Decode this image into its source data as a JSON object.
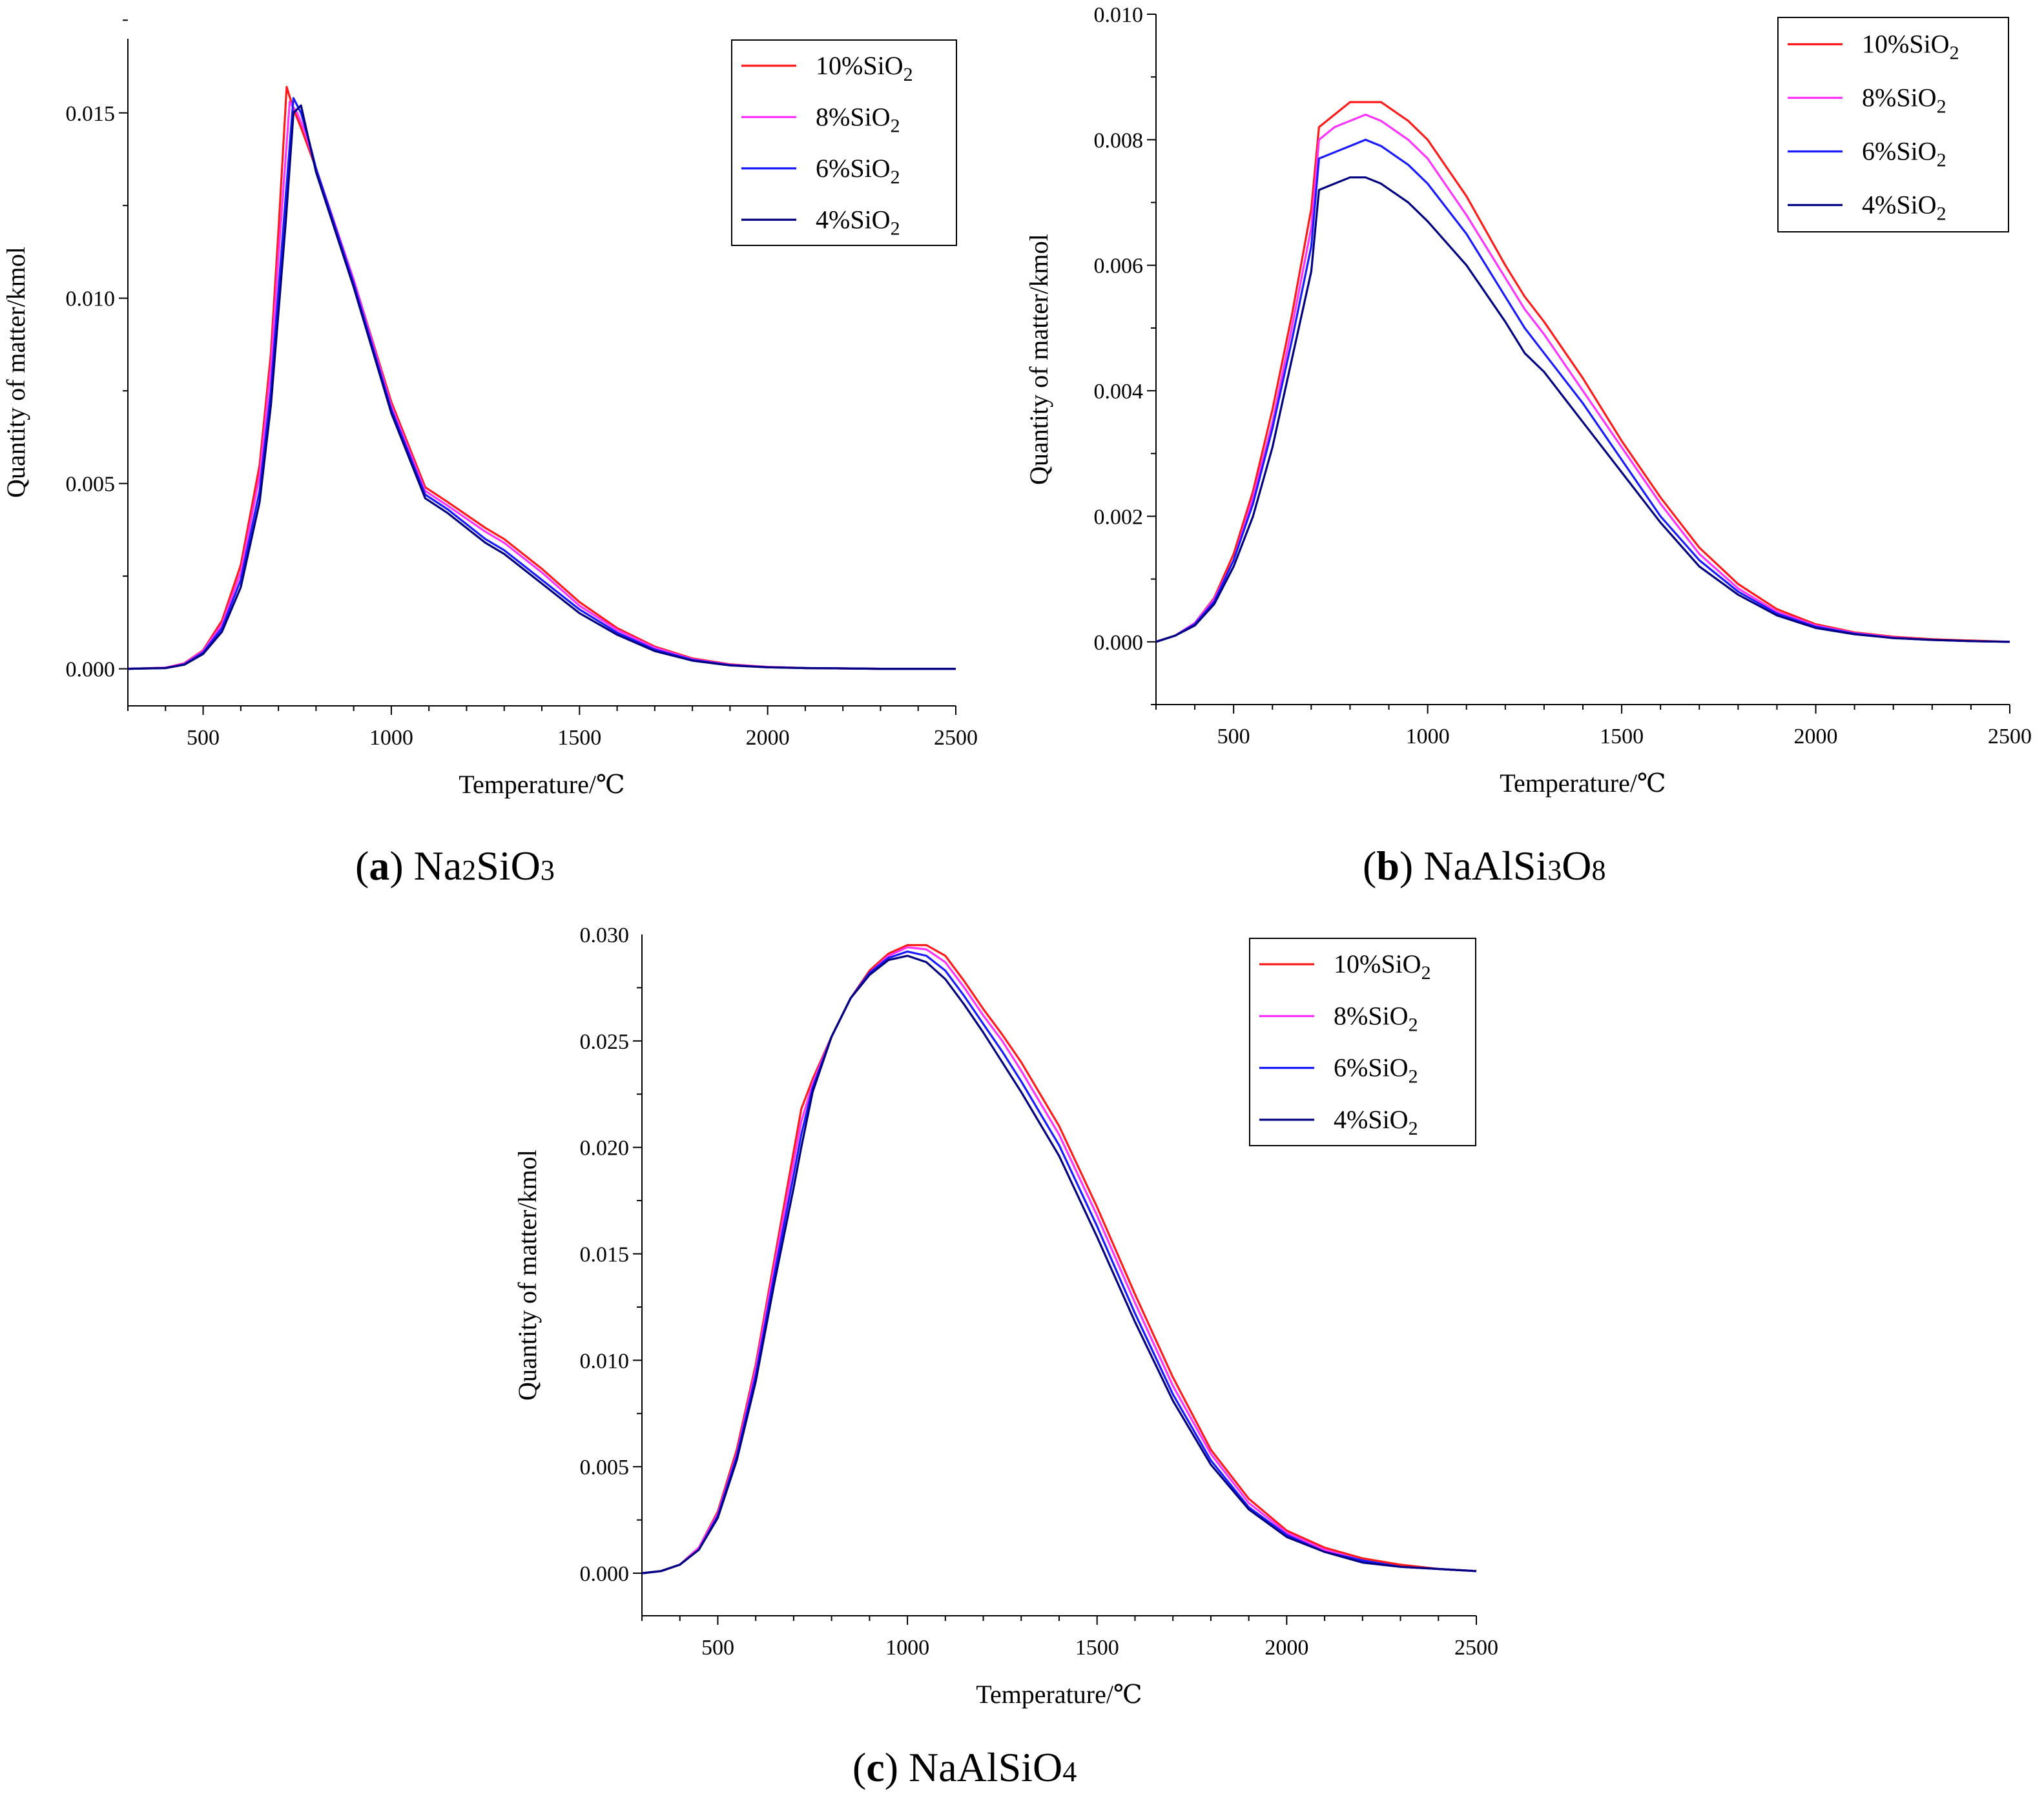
{
  "figure": {
    "panels_note": "Three panels: Na2SiO3, NaAlSi3O8, NaAlSiO4"
  },
  "colors": {
    "s10": "#ff1a1a",
    "s8": "#ff33ff",
    "s6": "#1a1aff",
    "s4": "#000080"
  },
  "chart_data": [
    {
      "id": "a",
      "type": "line",
      "caption_letter": "a",
      "caption_compound": "Na",
      "caption_sub1": "2",
      "caption_mid": "SiO",
      "caption_sub2": "3",
      "caption_tail": "",
      "xlabel": "Temperature/℃",
      "ylabel": "Quantity of matter/kmol",
      "xlim": [
        300,
        2500
      ],
      "ylim": [
        -0.001,
        0.017
      ],
      "xticks": [
        500,
        1000,
        1500,
        2000,
        2500
      ],
      "yticks": [
        0.0,
        0.005,
        0.01,
        0.015
      ],
      "ytick_labels": [
        "0.000",
        "0.005",
        "0.010",
        "0.015"
      ],
      "legend": [
        "10%SiO2",
        "8%SiO2",
        "6%SiO2",
        "4%SiO2"
      ],
      "series": [
        {
          "name": "10%SiO2",
          "color_key": "s10",
          "x": [
            300,
            400,
            450,
            500,
            550,
            600,
            650,
            680,
            700,
            722,
            740,
            760,
            800,
            900,
            1000,
            1090,
            1150,
            1250,
            1300,
            1400,
            1500,
            1600,
            1700,
            1800,
            1900,
            2000,
            2100,
            2200,
            2300,
            2400,
            2500
          ],
          "y": [
            0,
            3e-05,
            0.00015,
            0.0005,
            0.0013,
            0.0028,
            0.0055,
            0.0085,
            0.0118,
            0.0157,
            0.0151,
            0.0146,
            0.0135,
            0.0105,
            0.0072,
            0.0049,
            0.0045,
            0.0038,
            0.0035,
            0.0027,
            0.0018,
            0.0011,
            0.0006,
            0.00028,
            0.00012,
            5e-05,
            2e-05,
            1e-05,
            0,
            0,
            0
          ]
        },
        {
          "name": "8%SiO2",
          "color_key": "s8",
          "x": [
            300,
            400,
            450,
            500,
            550,
            600,
            650,
            680,
            700,
            730,
            750,
            770,
            800,
            900,
            1000,
            1090,
            1150,
            1250,
            1300,
            1400,
            1500,
            1600,
            1700,
            1800,
            1900,
            2000,
            2100,
            2200,
            2300,
            2400,
            2500
          ],
          "y": [
            0,
            3e-05,
            0.00014,
            0.00048,
            0.0012,
            0.0026,
            0.0052,
            0.0081,
            0.0111,
            0.0153,
            0.015,
            0.0145,
            0.0135,
            0.0105,
            0.0071,
            0.0048,
            0.0044,
            0.0037,
            0.0034,
            0.0026,
            0.0017,
            0.00105,
            0.00057,
            0.00026,
            0.00011,
            5e-05,
            2e-05,
            1e-05,
            0,
            0,
            0
          ]
        },
        {
          "name": "6%SiO2",
          "color_key": "s6",
          "x": [
            300,
            400,
            450,
            500,
            550,
            600,
            650,
            680,
            700,
            720,
            740,
            760,
            780,
            800,
            900,
            1000,
            1090,
            1150,
            1250,
            1300,
            1400,
            1500,
            1600,
            1700,
            1800,
            1900,
            2000,
            2100,
            2200,
            2300,
            2400,
            2500
          ],
          "y": [
            0,
            2e-05,
            0.00012,
            0.00044,
            0.0011,
            0.0024,
            0.0048,
            0.0075,
            0.0102,
            0.0128,
            0.0154,
            0.015,
            0.0143,
            0.0135,
            0.0104,
            0.007,
            0.0047,
            0.0043,
            0.0035,
            0.0032,
            0.0024,
            0.0016,
            0.00098,
            0.00052,
            0.00024,
            0.0001,
            4e-05,
            2e-05,
            1e-05,
            0,
            0,
            0
          ]
        },
        {
          "name": "4%SiO2",
          "color_key": "s4",
          "x": [
            300,
            400,
            450,
            500,
            550,
            600,
            650,
            680,
            700,
            720,
            740,
            760,
            780,
            800,
            900,
            1000,
            1090,
            1150,
            1250,
            1300,
            1400,
            1500,
            1600,
            1700,
            1800,
            1900,
            2000,
            2100,
            2200,
            2300,
            2400,
            2500
          ],
          "y": [
            0,
            2e-05,
            0.00011,
            0.0004,
            0.001,
            0.0022,
            0.0045,
            0.0071,
            0.0096,
            0.0121,
            0.015,
            0.0152,
            0.0143,
            0.0134,
            0.0103,
            0.0069,
            0.0046,
            0.0042,
            0.0034,
            0.0031,
            0.0023,
            0.0015,
            0.00092,
            0.00048,
            0.00022,
            9e-05,
            4e-05,
            2e-05,
            1e-05,
            0,
            0,
            0
          ]
        }
      ]
    },
    {
      "id": "b",
      "type": "line",
      "caption_letter": "b",
      "caption_compound": "NaAlSi",
      "caption_sub1": "3",
      "caption_mid": "O",
      "caption_sub2": "8",
      "caption_tail": "",
      "xlabel": "Temperature/℃",
      "ylabel": "Quantity of matter/kmol",
      "xlim": [
        300,
        2500
      ],
      "ylim": [
        -0.001,
        0.01
      ],
      "xticks": [
        500,
        1000,
        1500,
        2000,
        2500
      ],
      "yticks": [
        0.0,
        0.002,
        0.004,
        0.006,
        0.008,
        0.01
      ],
      "ytick_labels": [
        "0.000",
        "0.002",
        "0.004",
        "0.006",
        "0.008",
        "0.010"
      ],
      "legend": [
        "10%SiO2",
        "8%SiO2",
        "6%SiO2",
        "4%SiO2"
      ],
      "series": [
        {
          "name": "10%SiO2",
          "color_key": "s10",
          "x": [
            300,
            350,
            400,
            450,
            500,
            550,
            600,
            650,
            700,
            720,
            760,
            800,
            840,
            880,
            950,
            1000,
            1100,
            1200,
            1250,
            1300,
            1400,
            1500,
            1600,
            1700,
            1800,
            1900,
            2000,
            2100,
            2200,
            2300,
            2400,
            2500
          ],
          "y": [
            0,
            0.0001,
            0.0003,
            0.0007,
            0.0014,
            0.0024,
            0.0037,
            0.0052,
            0.0069,
            0.0082,
            0.0084,
            0.0086,
            0.0086,
            0.0086,
            0.0083,
            0.008,
            0.0071,
            0.006,
            0.0055,
            0.0051,
            0.0042,
            0.0032,
            0.0023,
            0.0015,
            0.00092,
            0.00052,
            0.00028,
            0.00015,
            8e-05,
            4e-05,
            2e-05,
            0
          ]
        },
        {
          "name": "8%SiO2",
          "color_key": "s8",
          "x": [
            300,
            350,
            400,
            450,
            500,
            550,
            600,
            650,
            700,
            720,
            760,
            800,
            840,
            880,
            950,
            1000,
            1100,
            1200,
            1250,
            1300,
            1400,
            1500,
            1600,
            1700,
            1800,
            1900,
            2000,
            2100,
            2200,
            2300,
            2400,
            2500
          ],
          "y": [
            0,
            0.0001,
            0.0003,
            0.00068,
            0.0013,
            0.0023,
            0.0035,
            0.005,
            0.0066,
            0.008,
            0.0082,
            0.0083,
            0.0084,
            0.0083,
            0.008,
            0.0077,
            0.0068,
            0.0058,
            0.0053,
            0.0049,
            0.004,
            0.0031,
            0.0022,
            0.0014,
            0.00085,
            0.00048,
            0.00026,
            0.00014,
            7e-05,
            3e-05,
            1e-05,
            0
          ]
        },
        {
          "name": "6%SiO2",
          "color_key": "s6",
          "x": [
            300,
            350,
            400,
            450,
            500,
            550,
            600,
            650,
            700,
            720,
            760,
            800,
            840,
            880,
            950,
            1000,
            1100,
            1200,
            1250,
            1300,
            1400,
            1500,
            1600,
            1700,
            1800,
            1900,
            2000,
            2100,
            2200,
            2300,
            2400,
            2500
          ],
          "y": [
            0,
            0.0001,
            0.00028,
            0.00064,
            0.0013,
            0.0022,
            0.0034,
            0.0048,
            0.0063,
            0.0077,
            0.0078,
            0.0079,
            0.008,
            0.0079,
            0.0076,
            0.0073,
            0.0065,
            0.0055,
            0.005,
            0.0046,
            0.0038,
            0.0029,
            0.002,
            0.0013,
            0.0008,
            0.00045,
            0.00024,
            0.00013,
            6e-05,
            3e-05,
            1e-05,
            0
          ]
        },
        {
          "name": "4%SiO2",
          "color_key": "s4",
          "x": [
            300,
            350,
            400,
            450,
            500,
            550,
            600,
            650,
            700,
            720,
            760,
            800,
            840,
            880,
            950,
            1000,
            1100,
            1200,
            1250,
            1300,
            1400,
            1500,
            1600,
            1700,
            1800,
            1900,
            2000,
            2100,
            2200,
            2300,
            2400,
            2500
          ],
          "y": [
            0,
            0.0001,
            0.00026,
            0.0006,
            0.0012,
            0.002,
            0.0031,
            0.0045,
            0.0059,
            0.0072,
            0.0073,
            0.0074,
            0.0074,
            0.0073,
            0.007,
            0.0067,
            0.006,
            0.0051,
            0.0046,
            0.0043,
            0.0035,
            0.0027,
            0.0019,
            0.0012,
            0.00075,
            0.00042,
            0.00022,
            0.00012,
            6e-05,
            3e-05,
            1e-05,
            0
          ]
        }
      ]
    },
    {
      "id": "c",
      "type": "line",
      "caption_letter": "c",
      "caption_compound": "NaAlSiO",
      "caption_sub1": "4",
      "caption_mid": "",
      "caption_sub2": "",
      "caption_tail": "",
      "xlabel": "Temperature/℃",
      "ylabel": "Quantity of matter/kmol",
      "xlim": [
        300,
        2500
      ],
      "ylim": [
        -0.002,
        0.03
      ],
      "xticks": [
        500,
        1000,
        1500,
        2000,
        2500
      ],
      "yticks": [
        0.0,
        0.005,
        0.01,
        0.015,
        0.02,
        0.025,
        0.03
      ],
      "ytick_labels": [
        "0.000",
        "0.005",
        "0.010",
        "0.015",
        "0.020",
        "0.025",
        "0.030"
      ],
      "legend": [
        "10%SiO2",
        "8%SiO2",
        "6%SiO2",
        "4%SiO2"
      ],
      "series": [
        {
          "name": "10%SiO2",
          "color_key": "s10",
          "x": [
            300,
            350,
            400,
            450,
            500,
            550,
            600,
            650,
            700,
            720,
            750,
            800,
            850,
            900,
            950,
            1000,
            1050,
            1100,
            1150,
            1200,
            1250,
            1300,
            1400,
            1500,
            1600,
            1700,
            1800,
            1900,
            2000,
            2100,
            2200,
            2300,
            2400,
            2500
          ],
          "y": [
            0,
            0.0001,
            0.0004,
            0.0012,
            0.0029,
            0.0058,
            0.0098,
            0.0148,
            0.0198,
            0.0218,
            0.0232,
            0.0252,
            0.027,
            0.0283,
            0.0291,
            0.0295,
            0.0295,
            0.029,
            0.0278,
            0.0265,
            0.0253,
            0.024,
            0.021,
            0.0172,
            0.0131,
            0.0092,
            0.0058,
            0.0035,
            0.002,
            0.0012,
            0.0007,
            0.0004,
            0.0002,
            0.0001
          ]
        },
        {
          "name": "8%SiO2",
          "color_key": "s8",
          "x": [
            300,
            350,
            400,
            450,
            500,
            550,
            600,
            650,
            700,
            720,
            750,
            800,
            850,
            900,
            950,
            1000,
            1050,
            1100,
            1150,
            1200,
            1250,
            1300,
            1400,
            1500,
            1600,
            1700,
            1800,
            1900,
            2000,
            2100,
            2200,
            2300,
            2400,
            2500
          ],
          "y": [
            0,
            0.0001,
            0.0004,
            0.0012,
            0.0028,
            0.0056,
            0.0096,
            0.0145,
            0.0193,
            0.0212,
            0.023,
            0.0252,
            0.027,
            0.0282,
            0.029,
            0.0294,
            0.0293,
            0.0287,
            0.0275,
            0.0262,
            0.025,
            0.0236,
            0.0206,
            0.0168,
            0.0127,
            0.0088,
            0.0056,
            0.0033,
            0.0019,
            0.0011,
            0.0006,
            0.0003,
            0.0002,
            0.0001
          ]
        },
        {
          "name": "6%SiO2",
          "color_key": "s6",
          "x": [
            300,
            350,
            400,
            450,
            500,
            550,
            600,
            650,
            700,
            720,
            750,
            800,
            850,
            900,
            950,
            1000,
            1050,
            1100,
            1150,
            1200,
            1250,
            1300,
            1400,
            1500,
            1600,
            1700,
            1800,
            1900,
            2000,
            2100,
            2200,
            2300,
            2400,
            2500
          ],
          "y": [
            0,
            0.0001,
            0.0004,
            0.0011,
            0.0027,
            0.0055,
            0.0093,
            0.0141,
            0.0187,
            0.0206,
            0.0228,
            0.0252,
            0.027,
            0.0282,
            0.0289,
            0.0292,
            0.029,
            0.0283,
            0.0271,
            0.0258,
            0.0245,
            0.0231,
            0.0201,
            0.0163,
            0.0122,
            0.0084,
            0.0053,
            0.0031,
            0.0018,
            0.001,
            0.0006,
            0.0003,
            0.0002,
            0.0001
          ]
        },
        {
          "name": "4%SiO2",
          "color_key": "s4",
          "x": [
            300,
            350,
            400,
            450,
            500,
            550,
            600,
            650,
            700,
            720,
            750,
            800,
            850,
            900,
            950,
            1000,
            1050,
            1100,
            1150,
            1200,
            1250,
            1300,
            1400,
            1500,
            1600,
            1700,
            1800,
            1900,
            2000,
            2100,
            2200,
            2300,
            2400,
            2500
          ],
          "y": [
            0,
            0.0001,
            0.0004,
            0.0011,
            0.0026,
            0.0053,
            0.009,
            0.0137,
            0.0181,
            0.02,
            0.0226,
            0.0252,
            0.027,
            0.0281,
            0.0288,
            0.029,
            0.0287,
            0.0279,
            0.0267,
            0.0254,
            0.024,
            0.0226,
            0.0196,
            0.0158,
            0.0118,
            0.0081,
            0.0051,
            0.003,
            0.0017,
            0.001,
            0.0005,
            0.0003,
            0.0002,
            0.0001
          ]
        }
      ]
    }
  ]
}
